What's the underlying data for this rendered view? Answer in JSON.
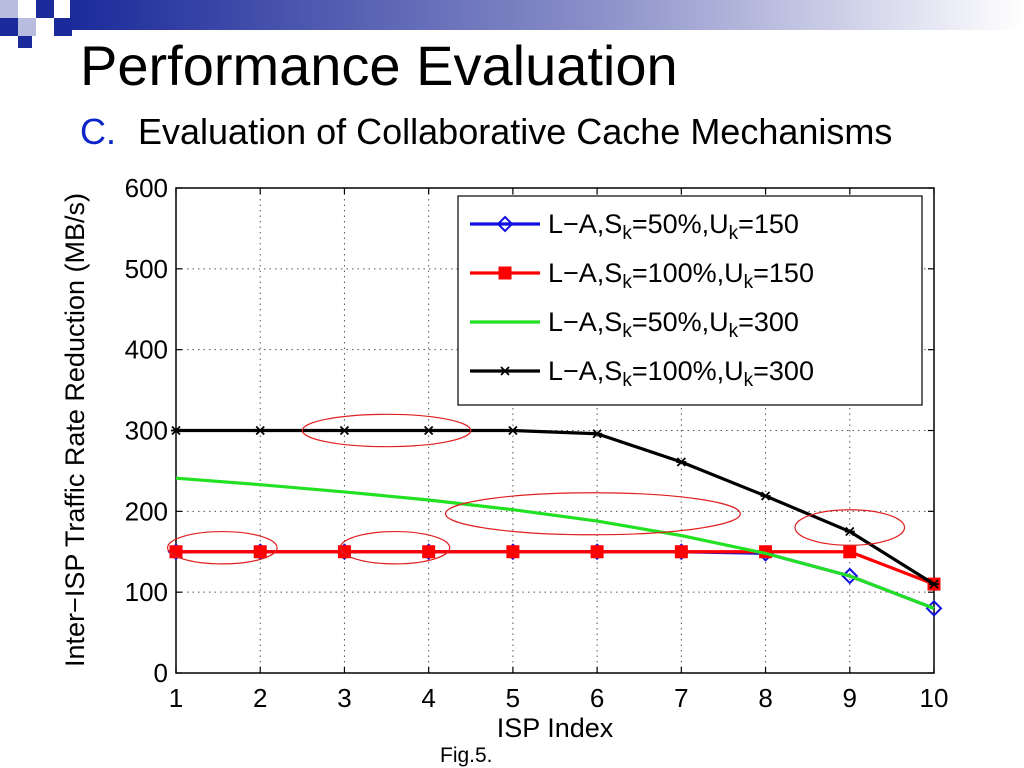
{
  "slide": {
    "title": "Performance Evaluation",
    "subtitle_letter": "C.",
    "subtitle_text": "Evaluation of Collaborative Cache Mechanisms",
    "caption": "Fig.5.",
    "accent_color": "#0b24c8"
  },
  "chart_data": {
    "type": "line",
    "title": "",
    "xlabel": "ISP Index",
    "ylabel": "Inter−ISP Traffic Rate Reduction (MB/s)",
    "x": [
      1,
      2,
      3,
      4,
      5,
      6,
      7,
      8,
      9,
      10
    ],
    "xticks": [
      "1",
      "2",
      "3",
      "4",
      "5",
      "6",
      "7",
      "8",
      "9",
      "10"
    ],
    "yticks": [
      "0",
      "100",
      "200",
      "300",
      "400",
      "500",
      "600"
    ],
    "xlim": [
      1,
      10
    ],
    "ylim": [
      0,
      600
    ],
    "grid": "dotted",
    "legend_position": "top-right",
    "series": [
      {
        "base": "L−A,S",
        "sub1": "k",
        "mid": "=50%,U",
        "sub2": "k",
        "end": "=150",
        "color": "#1010e0",
        "marker": "diamond",
        "values": [
          150,
          150,
          150,
          150,
          150,
          150,
          150,
          148,
          120,
          80
        ]
      },
      {
        "base": "L−A,S",
        "sub1": "k",
        "mid": "=100%,U",
        "sub2": "k",
        "end": "=150",
        "color": "#ff0000",
        "marker": "square",
        "values": [
          150,
          150,
          150,
          150,
          150,
          150,
          150,
          150,
          150,
          110
        ]
      },
      {
        "base": "L−A,S",
        "sub1": "k",
        "mid": "=50%,U",
        "sub2": "k",
        "end": "=300",
        "color": "#22e022",
        "marker": "none",
        "values": [
          241,
          233,
          224,
          214,
          202,
          188,
          170,
          148,
          120,
          80
        ]
      },
      {
        "base": "L−A,S",
        "sub1": "k",
        "mid": "=100%,U",
        "sub2": "k",
        "end": "=300",
        "color": "#000000",
        "marker": "star",
        "values": [
          300,
          300,
          300,
          300,
          300,
          296,
          261,
          219,
          175,
          110
        ]
      }
    ],
    "annotations": [
      {
        "type": "ellipse",
        "cx": 3.5,
        "cy": 300,
        "rx": 1.0,
        "ry": 20
      },
      {
        "type": "ellipse",
        "cx": 1.55,
        "cy": 155,
        "rx": 0.65,
        "ry": 20
      },
      {
        "type": "ellipse",
        "cx": 3.6,
        "cy": 155,
        "rx": 0.65,
        "ry": 20
      },
      {
        "type": "ellipse",
        "cx": 5.95,
        "cy": 197,
        "rx": 1.75,
        "ry": 26
      },
      {
        "type": "ellipse",
        "cx": 9.0,
        "cy": 180,
        "rx": 0.65,
        "ry": 22
      }
    ],
    "annotation_color": "#e02020"
  }
}
